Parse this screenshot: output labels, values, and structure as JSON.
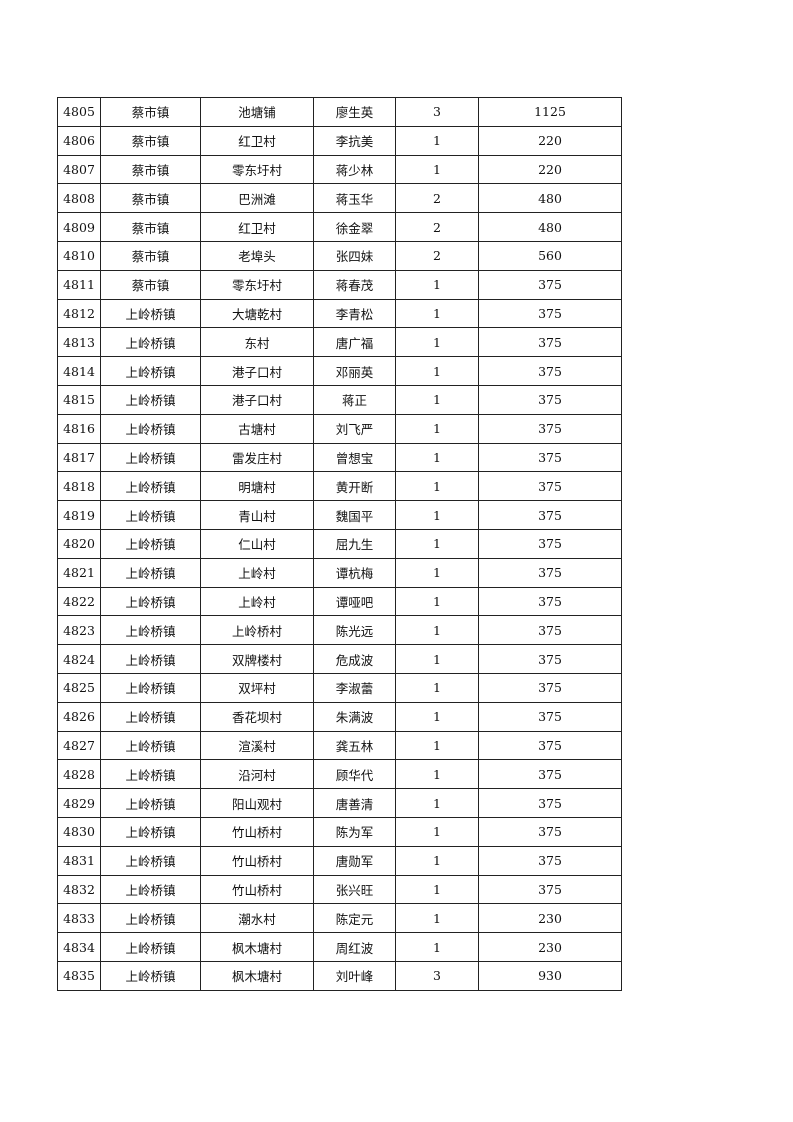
{
  "table": {
    "rows": [
      [
        "4805",
        "蔡市镇",
        "池塘铺",
        "廖生英",
        "3",
        "1125"
      ],
      [
        "4806",
        "蔡市镇",
        "红卫村",
        "李抗美",
        "1",
        "220"
      ],
      [
        "4807",
        "蔡市镇",
        "零东圩村",
        "蒋少林",
        "1",
        "220"
      ],
      [
        "4808",
        "蔡市镇",
        "巴洲滩",
        "蒋玉华",
        "2",
        "480"
      ],
      [
        "4809",
        "蔡市镇",
        "红卫村",
        "徐金翠",
        "2",
        "480"
      ],
      [
        "4810",
        "蔡市镇",
        "老埠头",
        "张四妹",
        "2",
        "560"
      ],
      [
        "4811",
        "蔡市镇",
        "零东圩村",
        "蒋春茂",
        "1",
        "375"
      ],
      [
        "4812",
        "上岭桥镇",
        "大塘乾村",
        "李青松",
        "1",
        "375"
      ],
      [
        "4813",
        "上岭桥镇",
        "东村",
        "唐广福",
        "1",
        "375"
      ],
      [
        "4814",
        "上岭桥镇",
        "港子口村",
        "邓丽英",
        "1",
        "375"
      ],
      [
        "4815",
        "上岭桥镇",
        "港子口村",
        "蒋正",
        "1",
        "375"
      ],
      [
        "4816",
        "上岭桥镇",
        "古塘村",
        "刘飞严",
        "1",
        "375"
      ],
      [
        "4817",
        "上岭桥镇",
        "雷发庄村",
        "曾想宝",
        "1",
        "375"
      ],
      [
        "4818",
        "上岭桥镇",
        "明塘村",
        "黄开断",
        "1",
        "375"
      ],
      [
        "4819",
        "上岭桥镇",
        "青山村",
        "魏国平",
        "1",
        "375"
      ],
      [
        "4820",
        "上岭桥镇",
        "仁山村",
        "屈九生",
        "1",
        "375"
      ],
      [
        "4821",
        "上岭桥镇",
        "上岭村",
        "谭杭梅",
        "1",
        "375"
      ],
      [
        "4822",
        "上岭桥镇",
        "上岭村",
        "谭哑吧",
        "1",
        "375"
      ],
      [
        "4823",
        "上岭桥镇",
        "上岭桥村",
        "陈光远",
        "1",
        "375"
      ],
      [
        "4824",
        "上岭桥镇",
        "双牌楼村",
        "危成波",
        "1",
        "375"
      ],
      [
        "4825",
        "上岭桥镇",
        "双坪村",
        "李淑蕾",
        "1",
        "375"
      ],
      [
        "4826",
        "上岭桥镇",
        "香花坝村",
        "朱满波",
        "1",
        "375"
      ],
      [
        "4827",
        "上岭桥镇",
        "渲溪村",
        "龚五林",
        "1",
        "375"
      ],
      [
        "4828",
        "上岭桥镇",
        "沿河村",
        "顾华代",
        "1",
        "375"
      ],
      [
        "4829",
        "上岭桥镇",
        "阳山观村",
        "唐善清",
        "1",
        "375"
      ],
      [
        "4830",
        "上岭桥镇",
        "竹山桥村",
        "陈为军",
        "1",
        "375"
      ],
      [
        "4831",
        "上岭桥镇",
        "竹山桥村",
        "唐勋军",
        "1",
        "375"
      ],
      [
        "4832",
        "上岭桥镇",
        "竹山桥村",
        "张兴旺",
        "1",
        "375"
      ],
      [
        "4833",
        "上岭桥镇",
        "潮水村",
        "陈定元",
        "1",
        "230"
      ],
      [
        "4834",
        "上岭桥镇",
        "枫木塘村",
        "周红波",
        "1",
        "230"
      ],
      [
        "4835",
        "上岭桥镇",
        "枫木塘村",
        "刘叶峰",
        "3",
        "930"
      ]
    ]
  }
}
